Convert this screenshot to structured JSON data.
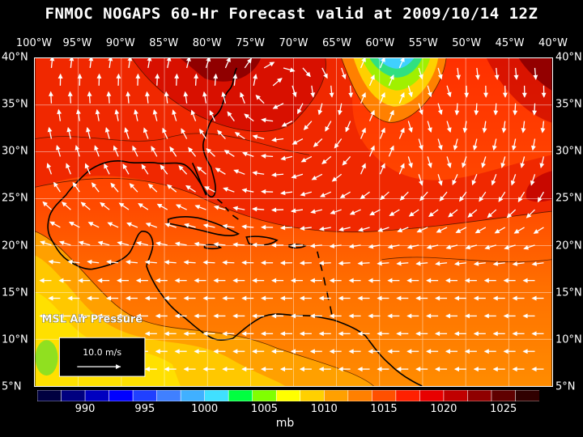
{
  "title": "FNMOC NOGAPS 60-Hr Forecast valid at 2009/10/14 12Z",
  "map": {
    "lon_labels": [
      "100°W",
      "95°W",
      "90°W",
      "85°W",
      "80°W",
      "75°W",
      "70°W",
      "65°W",
      "60°W",
      "55°W",
      "50°W",
      "45°W",
      "40°W"
    ],
    "lat_labels": [
      "40°N",
      "35°N",
      "30°N",
      "25°N",
      "20°N",
      "15°N",
      "10°N",
      "5°N"
    ],
    "field_label": "MSL Air Pressure",
    "vector_scale": "10.0 m/s"
  },
  "colorbar": {
    "labels": [
      "990",
      "995",
      "1000",
      "1005",
      "1010",
      "1015",
      "1020",
      "1025"
    ],
    "unit": "mb",
    "colors": [
      "#000040",
      "#000080",
      "#0000c0",
      "#0000ff",
      "#2040ff",
      "#4080ff",
      "#40b0ff",
      "#40e0ff",
      "#00ff40",
      "#80ff00",
      "#ffff00",
      "#ffd000",
      "#ffa000",
      "#ff8000",
      "#ff5000",
      "#ff2000",
      "#e80000",
      "#c00000",
      "#900000",
      "#600000",
      "#300000"
    ]
  }
}
